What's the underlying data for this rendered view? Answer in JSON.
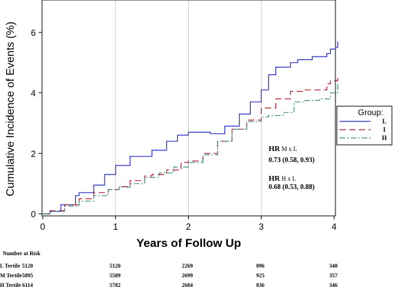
{
  "chart_data": {
    "type": "line",
    "xlabel": "Years of Follow Up",
    "ylabel": "Cumulative Incidence of Events (%)",
    "xlim": [
      0,
      4.05
    ],
    "ylim": [
      0,
      7
    ],
    "x_ticks": [
      "0",
      "1",
      "2",
      "3",
      "4"
    ],
    "y_ticks": [
      "0",
      "2",
      "4",
      "6"
    ],
    "grid": "vertical",
    "legend": {
      "title": "Group:",
      "placement": "right",
      "entries": [
        "L",
        "I",
        "H"
      ]
    },
    "series": [
      {
        "name": "L",
        "color": "#2b2bc8",
        "dash": "solid",
        "points": [
          [
            0,
            0
          ],
          [
            0.1,
            0.08
          ],
          [
            0.25,
            0.3
          ],
          [
            0.45,
            0.6
          ],
          [
            0.5,
            0.7
          ],
          [
            0.7,
            0.95
          ],
          [
            0.85,
            1.3
          ],
          [
            1.0,
            1.6
          ],
          [
            1.2,
            1.9
          ],
          [
            1.5,
            2.1
          ],
          [
            1.7,
            2.4
          ],
          [
            1.85,
            2.6
          ],
          [
            2.0,
            2.7
          ],
          [
            2.3,
            2.65
          ],
          [
            2.5,
            2.9
          ],
          [
            2.7,
            3.3
          ],
          [
            2.85,
            3.7
          ],
          [
            3.0,
            4.1
          ],
          [
            3.1,
            4.6
          ],
          [
            3.2,
            4.85
          ],
          [
            3.4,
            5.0
          ],
          [
            3.5,
            5.1
          ],
          [
            3.7,
            5.2
          ],
          [
            3.9,
            5.3
          ],
          [
            3.95,
            5.45
          ],
          [
            4.02,
            5.5
          ],
          [
            4.05,
            5.7
          ]
        ]
      },
      {
        "name": "I",
        "color": "#b01c2a",
        "dash": "long-dash",
        "points": [
          [
            0,
            0
          ],
          [
            0.1,
            0.1
          ],
          [
            0.3,
            0.3
          ],
          [
            0.5,
            0.5
          ],
          [
            0.7,
            0.7
          ],
          [
            0.9,
            0.8
          ],
          [
            1.05,
            0.9
          ],
          [
            1.2,
            1.1
          ],
          [
            1.4,
            1.25
          ],
          [
            1.5,
            1.3
          ],
          [
            1.7,
            1.45
          ],
          [
            1.9,
            1.7
          ],
          [
            2.0,
            1.75
          ],
          [
            2.2,
            2.0
          ],
          [
            2.4,
            2.4
          ],
          [
            2.6,
            2.8
          ],
          [
            2.8,
            3.1
          ],
          [
            3.0,
            3.5
          ],
          [
            3.2,
            3.8
          ],
          [
            3.4,
            4.05
          ],
          [
            3.6,
            4.1
          ],
          [
            3.8,
            4.1
          ],
          [
            3.9,
            4.3
          ],
          [
            3.95,
            4.4
          ],
          [
            4.05,
            4.5
          ]
        ]
      },
      {
        "name": "H",
        "color": "#3f8f7a",
        "dash": "dash-dot",
        "points": [
          [
            0,
            0
          ],
          [
            0.1,
            0.08
          ],
          [
            0.3,
            0.25
          ],
          [
            0.5,
            0.42
          ],
          [
            0.7,
            0.6
          ],
          [
            0.9,
            0.8
          ],
          [
            1.05,
            0.88
          ],
          [
            1.2,
            1.0
          ],
          [
            1.4,
            1.2
          ],
          [
            1.6,
            1.35
          ],
          [
            1.8,
            1.55
          ],
          [
            2.0,
            1.7
          ],
          [
            2.2,
            1.95
          ],
          [
            2.4,
            2.4
          ],
          [
            2.6,
            2.8
          ],
          [
            2.8,
            3.05
          ],
          [
            3.0,
            3.2
          ],
          [
            3.1,
            3.25
          ],
          [
            3.3,
            3.35
          ],
          [
            3.45,
            3.7
          ],
          [
            3.6,
            3.75
          ],
          [
            3.8,
            3.8
          ],
          [
            3.95,
            4.0
          ],
          [
            4.05,
            4.3
          ]
        ]
      }
    ],
    "annotations": [
      {
        "label_bold": "HR",
        "label_rest": " M x L",
        "value": "0.73 (0.58, 0.93)"
      },
      {
        "label_bold": "HR",
        "label_rest": " H x L",
        "value": "0.68 (0.53, 0.88)"
      }
    ]
  },
  "risk_table": {
    "header": "Number at Risk",
    "rows": [
      {
        "label": "L Tertile",
        "values": [
          "5120",
          "5120",
          "2269",
          "896",
          "348"
        ]
      },
      {
        "label": "M Tertile",
        "values": [
          "5895",
          "5589",
          "2699",
          "925",
          "357"
        ]
      },
      {
        "label": "H Tertile",
        "values": [
          "6114",
          "5782",
          "2684",
          "836",
          "346"
        ]
      }
    ]
  }
}
